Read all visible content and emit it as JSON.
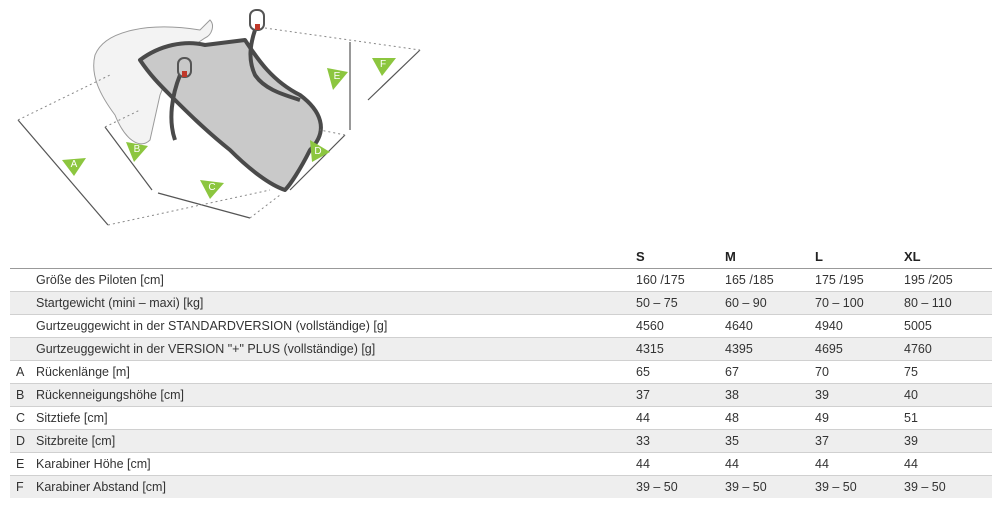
{
  "diagram": {
    "labels": [
      "A",
      "B",
      "C",
      "D",
      "E",
      "F"
    ],
    "accent_color": "#8cc63f"
  },
  "table": {
    "columns": [
      "S",
      "M",
      "L",
      "XL"
    ],
    "rows": [
      {
        "letter": "",
        "label": "Größe des Piloten [cm]",
        "values": [
          "160 /175",
          "165 /185",
          "175 /195",
          "195 /205"
        ]
      },
      {
        "letter": "",
        "label": "Startgewicht (mini – maxi) [kg]",
        "values": [
          "50 – 75",
          "60 – 90",
          "70 – 100",
          "80 – 110"
        ]
      },
      {
        "letter": "",
        "label": "Gurtzeuggewicht in der STANDARDVERSION (vollständige) [g]",
        "values": [
          "4560",
          "4640",
          "4940",
          "5005"
        ]
      },
      {
        "letter": "",
        "label": "Gurtzeuggewicht in der VERSION \"+\" PLUS (vollständige) [g]",
        "values": [
          "4315",
          "4395",
          "4695",
          "4760"
        ]
      },
      {
        "letter": "A",
        "label": "Rückenlänge [m]",
        "values": [
          "65",
          "67",
          "70",
          "75"
        ]
      },
      {
        "letter": "B",
        "label": "Rückenneigungshöhe [cm]",
        "values": [
          "37",
          "38",
          "39",
          "40"
        ]
      },
      {
        "letter": "C",
        "label": "Sitztiefe [cm]",
        "values": [
          "44",
          "48",
          "49",
          "51"
        ]
      },
      {
        "letter": "D",
        "label": "Sitzbreite [cm]",
        "values": [
          "33",
          "35",
          "37",
          "39"
        ]
      },
      {
        "letter": "E",
        "label": "Karabiner Höhe [cm]",
        "values": [
          "44",
          "44",
          "44",
          "44"
        ]
      },
      {
        "letter": "F",
        "label": "Karabiner Abstand [cm]",
        "values": [
          "39 – 50",
          "39 – 50",
          "39 – 50",
          "39 – 50"
        ]
      }
    ]
  }
}
